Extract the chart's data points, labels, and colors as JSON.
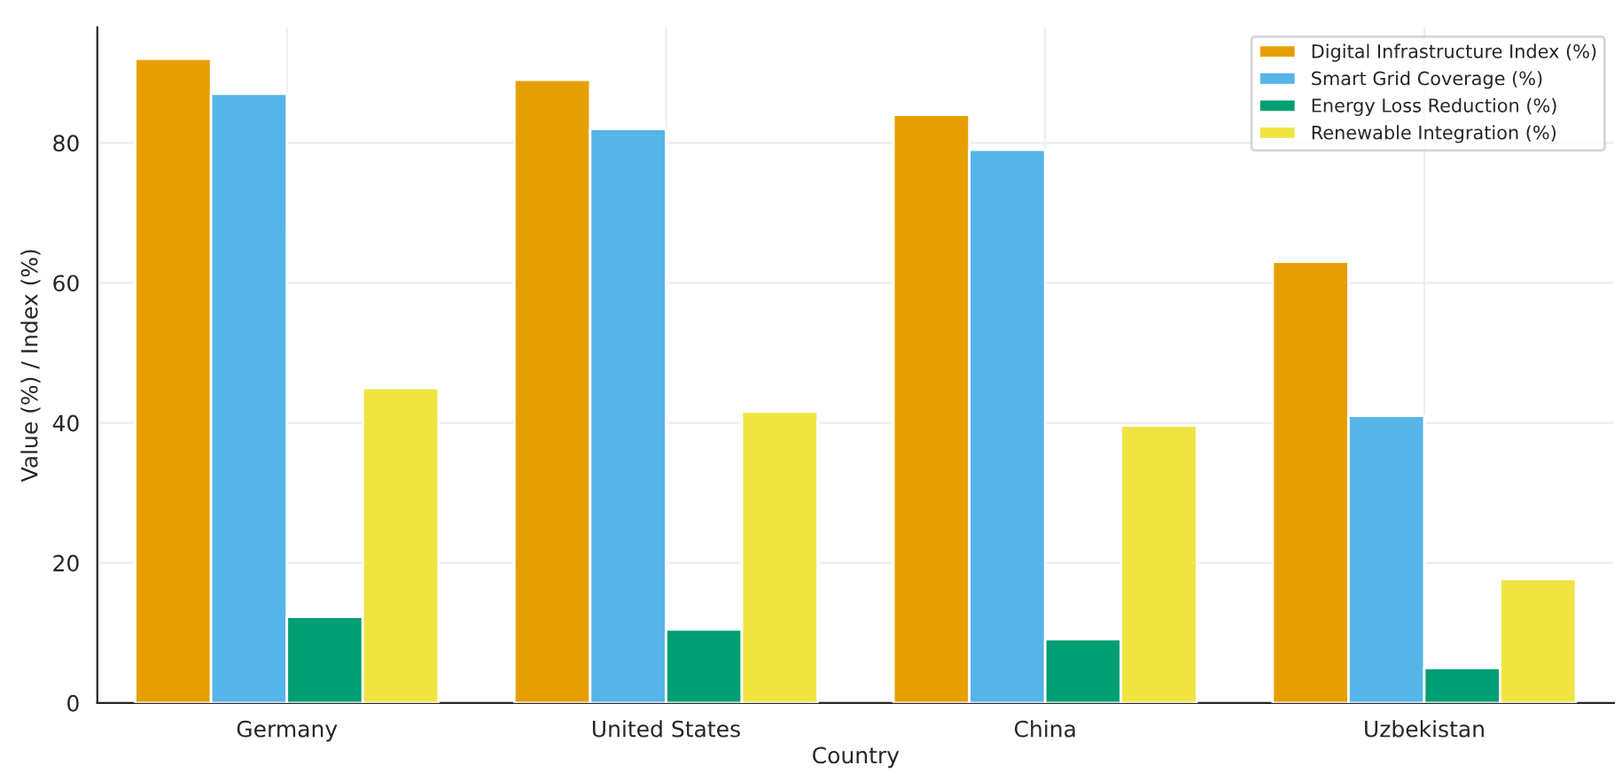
{
  "chart_data": {
    "type": "bar",
    "xlabel": "Country",
    "ylabel": "Value (%) / Index (%)",
    "categories": [
      "Germany",
      "United States",
      "China",
      "Uzbekistan"
    ],
    "series": [
      {
        "name": "Digital Infrastructure Index (%)",
        "color": "#e69f00",
        "values": [
          92,
          89,
          84,
          63
        ]
      },
      {
        "name": "Smart Grid Coverage (%)",
        "color": "#56b4e9",
        "values": [
          87,
          82,
          79,
          41
        ]
      },
      {
        "name": "Energy Loss Reduction (%)",
        "color": "#009e73",
        "values": [
          12.3,
          10.5,
          9.1,
          5
        ]
      },
      {
        "name": "Renewable Integration (%)",
        "color": "#f0e442",
        "values": [
          45,
          41.6,
          39.6,
          17.7
        ]
      }
    ],
    "ylim": [
      0,
      96.5
    ],
    "yticks": [
      0,
      20,
      40,
      60,
      80
    ],
    "grid": true,
    "legend": "top right"
  }
}
